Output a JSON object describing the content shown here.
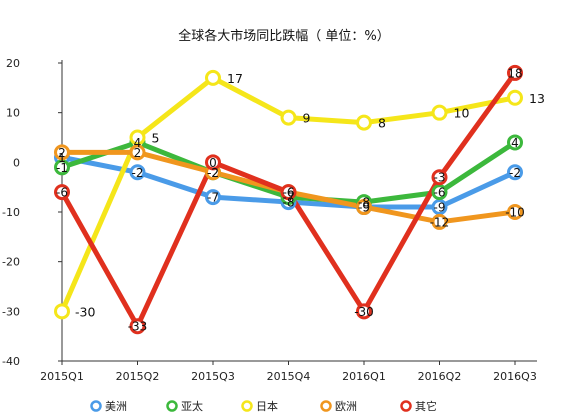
{
  "chart_data": {
    "type": "line",
    "title": "全球各大市场同比跌幅（ 单位：%）",
    "categories": [
      "2015Q1",
      "2015Q2",
      "2015Q3",
      "2015Q4",
      "2016Q1",
      "2016Q2",
      "2016Q3"
    ],
    "ylim": [
      -40,
      20
    ],
    "yticks": [
      20,
      10,
      0,
      -10,
      -20,
      -30,
      -40
    ],
    "grid": false,
    "legend_position": "bottom",
    "series": [
      {
        "name": "美洲",
        "color": "#4a9be8",
        "values": [
          1,
          -2,
          -7,
          -8,
          -9,
          -9,
          -2
        ]
      },
      {
        "name": "亚太",
        "color": "#3cb83c",
        "values": [
          -1,
          4,
          -2,
          -7,
          -8,
          -6,
          4
        ]
      },
      {
        "name": "日本",
        "color": "#f5e61a",
        "values": [
          -30,
          5,
          17,
          9,
          8,
          10,
          13
        ]
      },
      {
        "name": "欧洲",
        "color": "#f0961e",
        "values": [
          2,
          2,
          -2,
          -6,
          -9,
          -12,
          -10
        ]
      },
      {
        "name": "其它",
        "color": "#e0301e",
        "values": [
          -6,
          -33,
          0,
          -6,
          -30,
          -3,
          18
        ]
      }
    ]
  }
}
